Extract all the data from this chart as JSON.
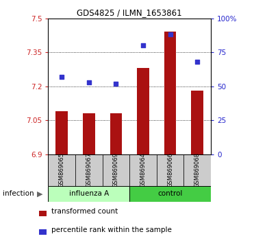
{
  "title": "GDS4825 / ILMN_1653861",
  "categories": [
    "GSM869065",
    "GSM869067",
    "GSM869069",
    "GSM869064",
    "GSM869066",
    "GSM869068"
  ],
  "group_labels": [
    "influenza A",
    "control"
  ],
  "bar_values": [
    7.09,
    7.08,
    7.08,
    7.28,
    7.44,
    7.18
  ],
  "dot_values": [
    57,
    53,
    52,
    80,
    88,
    68
  ],
  "ylim_left": [
    6.9,
    7.5
  ],
  "ylim_right": [
    0,
    100
  ],
  "yticks_left": [
    6.9,
    7.05,
    7.2,
    7.35,
    7.5
  ],
  "yticks_right": [
    0,
    25,
    50,
    75,
    100
  ],
  "ytick_labels_left": [
    "6.9",
    "7.05",
    "7.2",
    "7.35",
    "7.5"
  ],
  "ytick_labels_right": [
    "0",
    "25",
    "50",
    "75",
    "100%"
  ],
  "bar_color": "#aa1111",
  "dot_color": "#3333cc",
  "bar_base": 6.9,
  "label_infection": "infection",
  "legend_bar": "transformed count",
  "legend_dot": "percentile rank within the sample",
  "grid_color": "black",
  "tick_color_left": "#cc2222",
  "tick_color_right": "#2222cc",
  "bg_plot": "white",
  "bg_xtick": "#cccccc",
  "bg_group_influenza": "#bbffbb",
  "bg_group_control": "#44cc44",
  "bar_width": 0.45
}
